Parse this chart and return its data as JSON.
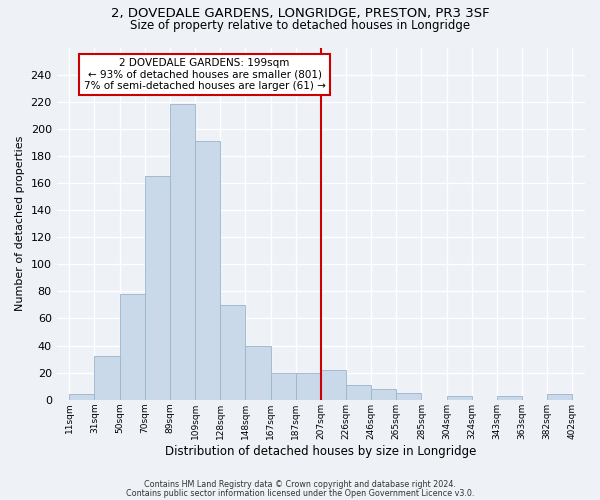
{
  "title1": "2, DOVEDALE GARDENS, LONGRIDGE, PRESTON, PR3 3SF",
  "title2": "Size of property relative to detached houses in Longridge",
  "xlabel": "Distribution of detached houses by size in Longridge",
  "ylabel": "Number of detached properties",
  "bar_labels": [
    "11sqm",
    "31sqm",
    "50sqm",
    "70sqm",
    "89sqm",
    "109sqm",
    "128sqm",
    "148sqm",
    "167sqm",
    "187sqm",
    "207sqm",
    "226sqm",
    "246sqm",
    "265sqm",
    "285sqm",
    "304sqm",
    "324sqm",
    "343sqm",
    "363sqm",
    "382sqm",
    "402sqm"
  ],
  "bar_heights": [
    4,
    32,
    78,
    165,
    218,
    191,
    70,
    40,
    20,
    20,
    22,
    11,
    8,
    5,
    0,
    3,
    0,
    3,
    0,
    4
  ],
  "bar_color": "#c9d9ea",
  "bar_edge_color": "#9ab5cc",
  "vline_x": 10,
  "vline_color": "#cc0000",
  "annotation_title": "2 DOVEDALE GARDENS: 199sqm",
  "annotation_line1": "← 93% of detached houses are smaller (801)",
  "annotation_line2": "7% of semi-detached houses are larger (61) →",
  "annotation_box_color": "#ffffff",
  "annotation_box_edge": "#cc0000",
  "ylim": [
    0,
    260
  ],
  "yticks": [
    0,
    20,
    40,
    60,
    80,
    100,
    120,
    140,
    160,
    180,
    200,
    220,
    240
  ],
  "footer1": "Contains HM Land Registry data © Crown copyright and database right 2024.",
  "footer2": "Contains public sector information licensed under the Open Government Licence v3.0.",
  "bg_color": "#eef2f7",
  "grid_color": "#ffffff"
}
